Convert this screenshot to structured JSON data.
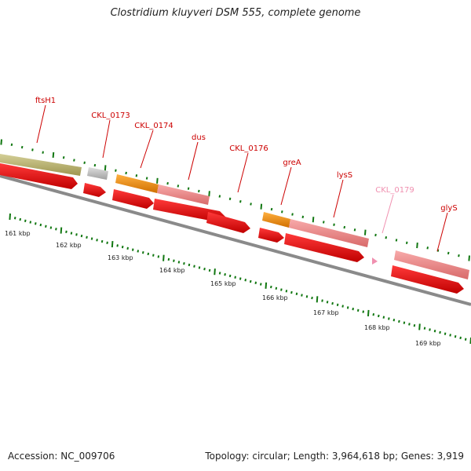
{
  "title": "Clostridium kluyveri DSM 555, complete genome",
  "footer": {
    "accession": "Accession: NC_009706",
    "topology": "Topology: circular; Length: 3,964,618 bp; Genes: 3,919"
  },
  "colors": {
    "label_red": "#cc0000",
    "label_pink": "#f090b0",
    "tick_green": "#117711",
    "backbone": "#808080",
    "gene_olive": "#b8b070",
    "gene_gray": "#bdbdbd",
    "gene_orange": "#f08a00",
    "gene_salmon": "#ee8080",
    "cds_red": "#ee0000"
  },
  "scale_labels": [
    "161 kbp",
    "162 kbp",
    "163 kbp",
    "164 kbp",
    "165 kbp",
    "166 kbp",
    "167 kbp",
    "168 kbp",
    "169 kbp"
  ],
  "gene_labels": [
    {
      "text": "ftsH1",
      "color": "red"
    },
    {
      "text": "CKL_0173",
      "color": "red"
    },
    {
      "text": "CKL_0174",
      "color": "red"
    },
    {
      "text": "dus",
      "color": "red"
    },
    {
      "text": "CKL_0176",
      "color": "red"
    },
    {
      "text": "greA",
      "color": "red"
    },
    {
      "text": "lysS",
      "color": "red"
    },
    {
      "text": "CKL_0179",
      "color": "pink"
    },
    {
      "text": "glyS",
      "color": "red"
    }
  ]
}
